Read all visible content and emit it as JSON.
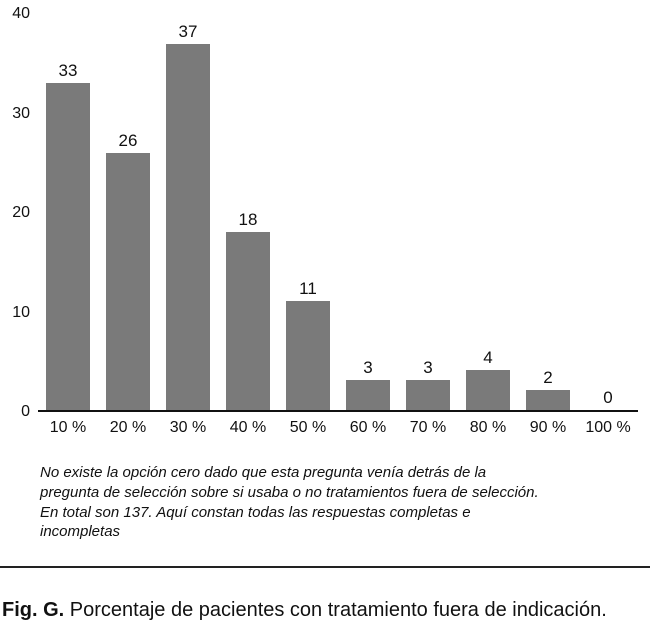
{
  "chart_data": {
    "type": "bar",
    "categories": [
      "10 %",
      "20 %",
      "30 %",
      "40 %",
      "50 %",
      "60 %",
      "70 %",
      "80 %",
      "90 %",
      "100 %"
    ],
    "values": [
      33,
      26,
      37,
      18,
      11,
      3,
      3,
      4,
      2,
      0
    ],
    "title": "",
    "xlabel": "",
    "ylabel": "",
    "ylim": [
      0,
      40
    ],
    "yticks": [
      0,
      10,
      20,
      30,
      40
    ],
    "bar_color": "#7a7a7a",
    "grid": false,
    "legend_position": "none"
  },
  "note": "No existe la opción cero dado que esta pregunta venía detrás de la pregunta de selección sobre si usaba o no tratamientos fuera de selección. En total son 137. Aquí constan todas las respuestas completas e incompletas",
  "caption": {
    "label": "Fig. G.",
    "text": "Porcentaje de pacientes con tratamiento fuera de indicación."
  }
}
